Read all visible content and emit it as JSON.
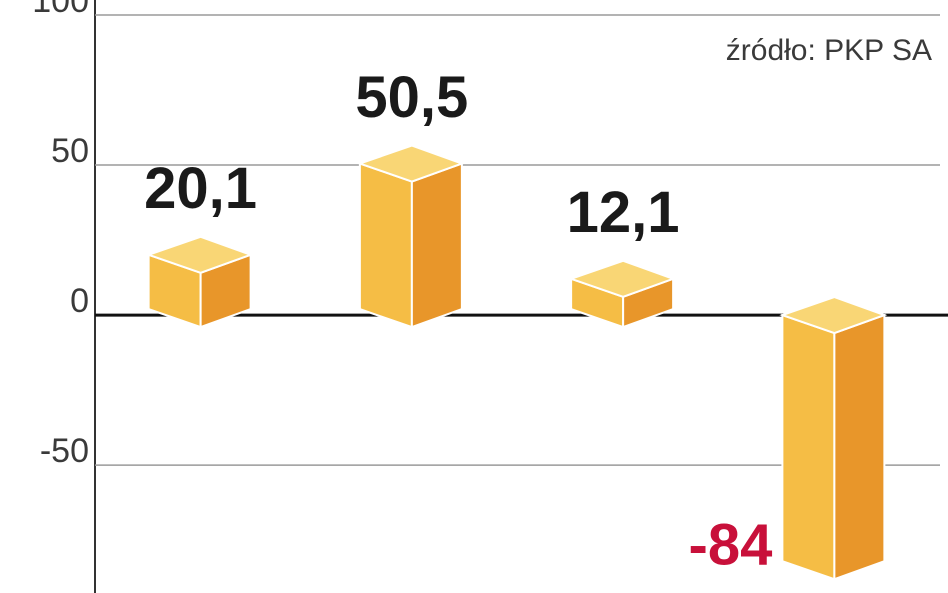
{
  "chart_data": {
    "type": "bar",
    "source": "źródło: PKP SA",
    "categories": [
      null,
      null,
      null,
      null
    ],
    "values": [
      20.1,
      50.5,
      12.1,
      -84
    ],
    "value_labels": [
      "20,1",
      "50,5",
      "12,1",
      "-84"
    ],
    "color": "#f5bd45",
    "label_color": "#1a1a1a",
    "negative_label_color": "#c8103a",
    "ylim": [
      -92.6,
      105
    ],
    "yticks": [
      -50,
      0,
      50,
      100
    ],
    "grid": true
  }
}
